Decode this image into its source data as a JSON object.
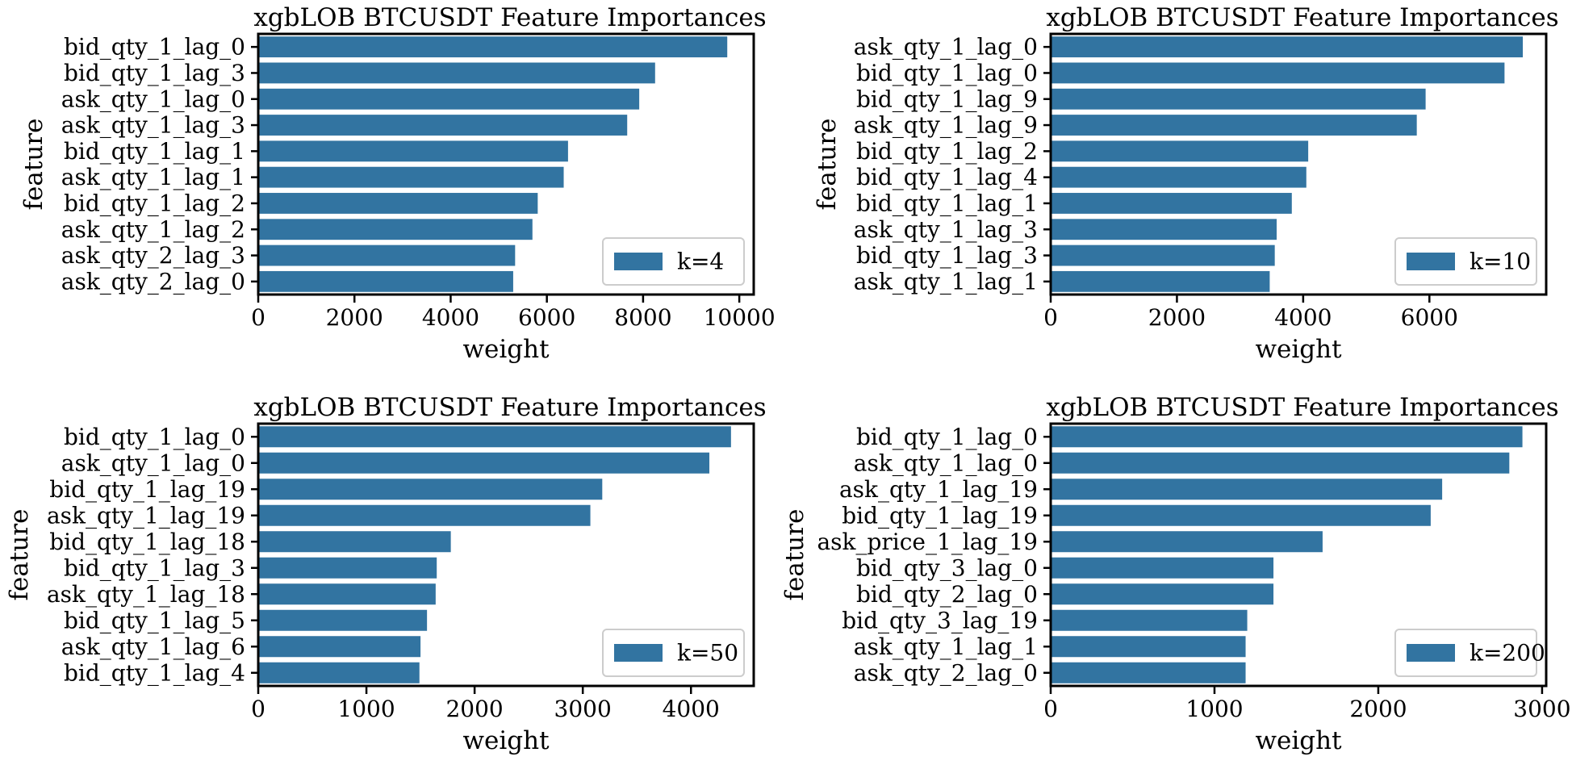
{
  "chart_data": [
    {
      "type": "bar",
      "orientation": "horizontal",
      "title": "xgbLOB BTCUSDT Feature Importances",
      "xlabel": "weight",
      "ylabel": "feature",
      "xlim": [
        0,
        10300
      ],
      "xticks": [
        0,
        2000,
        4000,
        6000,
        8000,
        10000
      ],
      "grid": false,
      "legend_position": "lower-right",
      "bar_color": "#3274a1",
      "categories": [
        "bid_qty_1_lag_0",
        "bid_qty_1_lag_3",
        "ask_qty_1_lag_0",
        "ask_qty_1_lag_3",
        "bid_qty_1_lag_1",
        "ask_qty_1_lag_1",
        "bid_qty_1_lag_2",
        "ask_qty_1_lag_2",
        "ask_qty_2_lag_3",
        "ask_qty_2_lag_0"
      ],
      "series": [
        {
          "name": "k=4",
          "values": [
            9750,
            8250,
            7920,
            7670,
            6440,
            6350,
            5810,
            5700,
            5340,
            5300
          ]
        }
      ]
    },
    {
      "type": "bar",
      "orientation": "horizontal",
      "title": "xgbLOB BTCUSDT Feature Importances",
      "xlabel": "weight",
      "ylabel": "feature",
      "xlim": [
        0,
        7850
      ],
      "xticks": [
        0,
        2000,
        4000,
        6000
      ],
      "grid": false,
      "legend_position": "lower-right",
      "bar_color": "#3274a1",
      "categories": [
        "ask_qty_1_lag_0",
        "bid_qty_1_lag_0",
        "bid_qty_1_lag_9",
        "ask_qty_1_lag_9",
        "bid_qty_1_lag_2",
        "bid_qty_1_lag_4",
        "bid_qty_1_lag_1",
        "ask_qty_1_lag_3",
        "bid_qty_1_lag_3",
        "ask_qty_1_lag_1"
      ],
      "series": [
        {
          "name": "k=10",
          "values": [
            7480,
            7190,
            5940,
            5800,
            4080,
            4050,
            3820,
            3580,
            3550,
            3470
          ]
        }
      ]
    },
    {
      "type": "bar",
      "orientation": "horizontal",
      "title": "xgbLOB BTCUSDT Feature Importances",
      "xlabel": "weight",
      "ylabel": "feature",
      "xlim": [
        0,
        4580
      ],
      "xticks": [
        0,
        1000,
        2000,
        3000,
        4000
      ],
      "grid": false,
      "legend_position": "lower-right",
      "bar_color": "#3274a1",
      "categories": [
        "bid_qty_1_lag_0",
        "ask_qty_1_lag_0",
        "bid_qty_1_lag_19",
        "ask_qty_1_lag_19",
        "bid_qty_1_lag_18",
        "bid_qty_1_lag_3",
        "ask_qty_1_lag_18",
        "bid_qty_1_lag_5",
        "ask_qty_1_lag_6",
        "bid_qty_1_lag_4"
      ],
      "series": [
        {
          "name": "k=50",
          "values": [
            4370,
            4170,
            3180,
            3070,
            1780,
            1650,
            1640,
            1560,
            1500,
            1490
          ]
        }
      ]
    },
    {
      "type": "bar",
      "orientation": "horizontal",
      "title": "xgbLOB BTCUSDT Feature Importances",
      "xlabel": "weight",
      "ylabel": "feature",
      "xlim": [
        0,
        3025
      ],
      "xticks": [
        0,
        1000,
        2000,
        3000
      ],
      "grid": false,
      "legend_position": "lower-right",
      "bar_color": "#3274a1",
      "categories": [
        "bid_qty_1_lag_0",
        "ask_qty_1_lag_0",
        "ask_qty_1_lag_19",
        "bid_qty_1_lag_19",
        "ask_price_1_lag_19",
        "bid_qty_3_lag_0",
        "bid_qty_2_lag_0",
        "bid_qty_3_lag_19",
        "ask_qty_1_lag_1",
        "ask_qty_2_lag_0"
      ],
      "series": [
        {
          "name": "k=200",
          "values": [
            2880,
            2800,
            2390,
            2320,
            1660,
            1360,
            1360,
            1200,
            1190,
            1190
          ]
        }
      ]
    }
  ]
}
